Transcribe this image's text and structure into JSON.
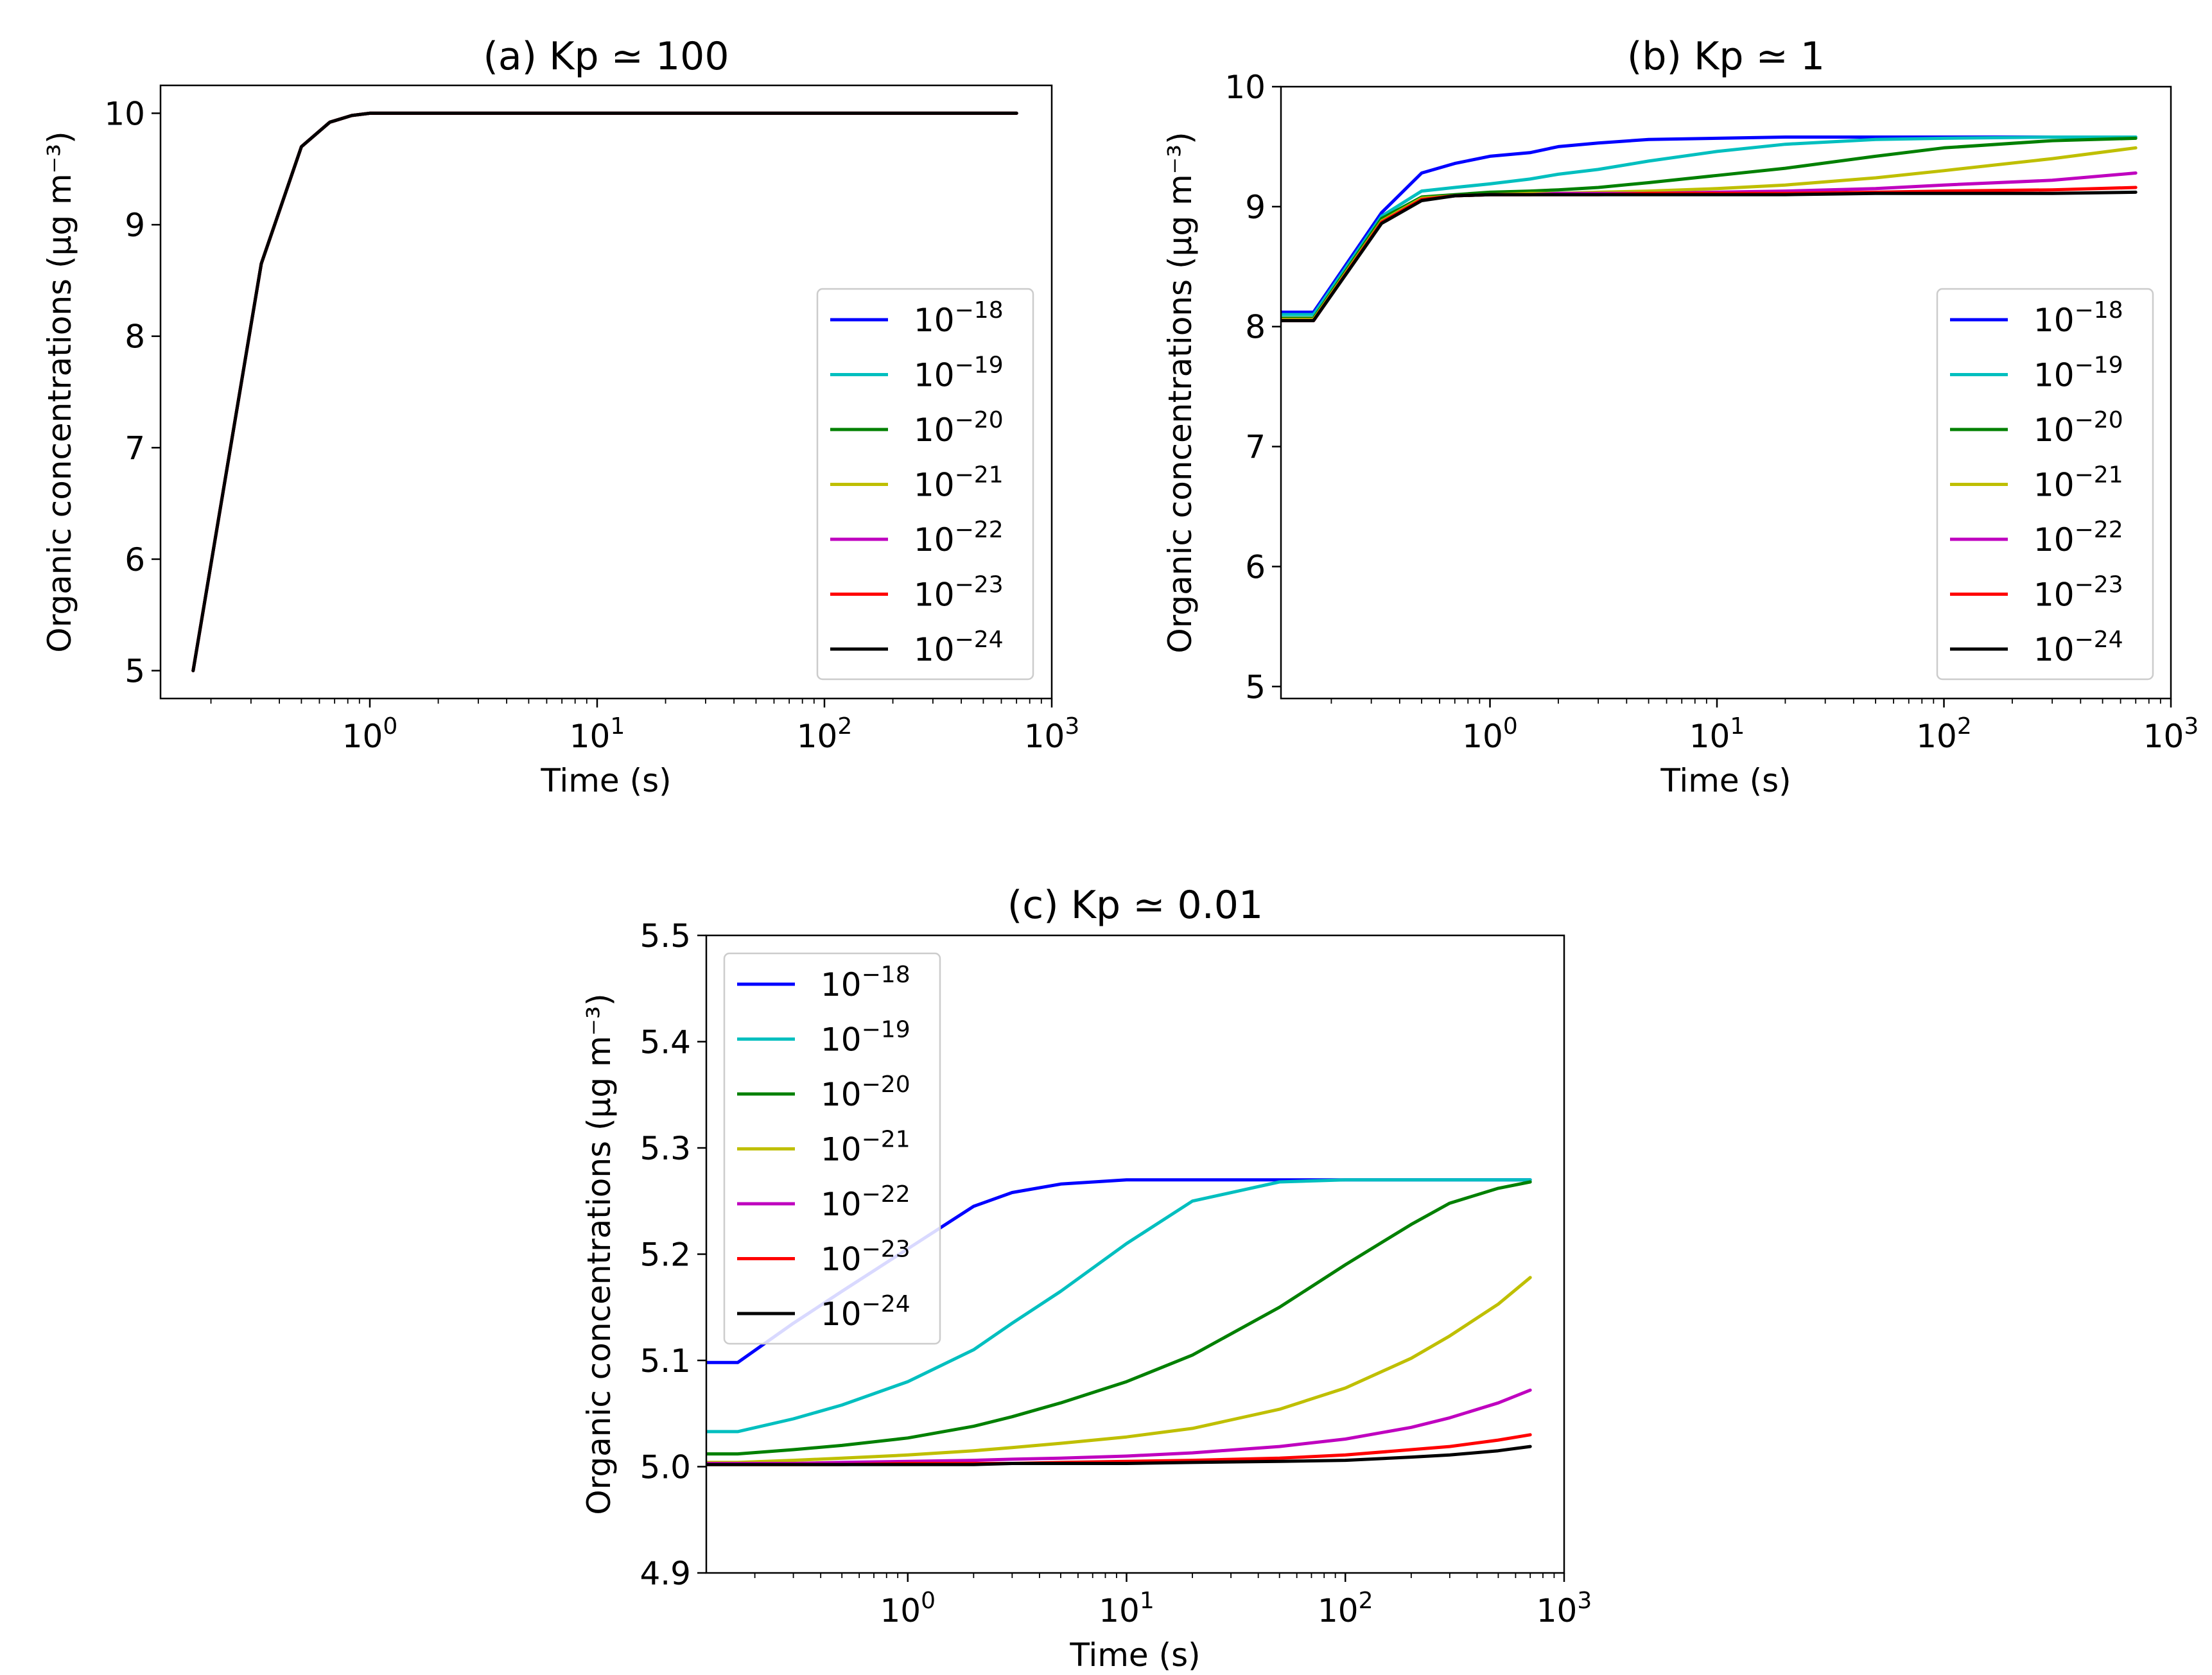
{
  "legend_labels": [
    "10^-18",
    "10^-19",
    "10^-20",
    "10^-21",
    "10^-22",
    "10^-23",
    "10^-24"
  ],
  "series_colors": [
    "#0000ff",
    "#00bfbf",
    "#008000",
    "#bfbf00",
    "#bf00bf",
    "#ff0000",
    "#000000"
  ],
  "chart_data": [
    {
      "type": "line",
      "title": "(a) Kp ≃ 100",
      "xlabel": "Time (s)",
      "ylabel": "Organic concentrations (μg m⁻³)",
      "xscale": "log",
      "xlim": [
        0.12,
        1000
      ],
      "ylim": [
        4.75,
        10.25
      ],
      "xticks": [
        "10^0",
        "10^1",
        "10^2",
        "10^3"
      ],
      "yticks": [
        "5",
        "6",
        "7",
        "8",
        "9",
        "10"
      ],
      "legend_loc": "lower right",
      "x": [
        0.167,
        0.333,
        0.5,
        0.667,
        0.833,
        1.0,
        1.5,
        3,
        10,
        100,
        700
      ],
      "series": [
        {
          "name": "10^-18",
          "values": [
            5.0,
            8.65,
            9.7,
            9.92,
            9.98,
            10.0,
            10.0,
            10.0,
            10.0,
            10.0,
            10.0
          ]
        },
        {
          "name": "10^-19",
          "values": [
            5.0,
            8.65,
            9.7,
            9.92,
            9.98,
            10.0,
            10.0,
            10.0,
            10.0,
            10.0,
            10.0
          ]
        },
        {
          "name": "10^-20",
          "values": [
            5.0,
            8.65,
            9.7,
            9.92,
            9.98,
            10.0,
            10.0,
            10.0,
            10.0,
            10.0,
            10.0
          ]
        },
        {
          "name": "10^-21",
          "values": [
            5.0,
            8.65,
            9.7,
            9.92,
            9.98,
            10.0,
            10.0,
            10.0,
            10.0,
            10.0,
            10.0
          ]
        },
        {
          "name": "10^-22",
          "values": [
            5.0,
            8.65,
            9.7,
            9.92,
            9.98,
            10.0,
            10.0,
            10.0,
            10.0,
            10.0,
            10.0
          ]
        },
        {
          "name": "10^-23",
          "values": [
            5.0,
            8.65,
            9.7,
            9.92,
            9.98,
            10.0,
            10.0,
            10.0,
            10.0,
            10.0,
            10.0
          ]
        },
        {
          "name": "10^-24",
          "values": [
            5.0,
            8.65,
            9.7,
            9.92,
            9.98,
            10.0,
            10.0,
            10.0,
            10.0,
            10.0,
            10.0
          ]
        }
      ]
    },
    {
      "type": "line",
      "title": "(b) Kp ≃ 1",
      "xlabel": "Time (s)",
      "ylabel": "Organic concentrations (μg m⁻³)",
      "xscale": "log",
      "xlim": [
        0.12,
        1000
      ],
      "ylim": [
        4.9,
        10.0
      ],
      "xticks": [
        "10^0",
        "10^1",
        "10^2",
        "10^3"
      ],
      "yticks": [
        "5",
        "6",
        "7",
        "8",
        "9",
        "10"
      ],
      "legend_loc": "lower right",
      "x": [
        0.12,
        0.167,
        0.333,
        0.5,
        0.7,
        1.0,
        1.5,
        2,
        3,
        5,
        10,
        20,
        50,
        100,
        300,
        700
      ],
      "series": [
        {
          "name": "10^-18",
          "values": [
            8.12,
            8.12,
            8.95,
            9.28,
            9.36,
            9.42,
            9.45,
            9.5,
            9.53,
            9.56,
            9.57,
            9.58,
            9.58,
            9.58,
            9.58,
            9.58
          ]
        },
        {
          "name": "10^-19",
          "values": [
            8.1,
            8.1,
            8.92,
            9.13,
            9.16,
            9.19,
            9.23,
            9.27,
            9.31,
            9.38,
            9.46,
            9.52,
            9.56,
            9.57,
            9.58,
            9.58
          ]
        },
        {
          "name": "10^-20",
          "values": [
            8.07,
            8.07,
            8.9,
            9.08,
            9.1,
            9.12,
            9.13,
            9.14,
            9.16,
            9.2,
            9.26,
            9.32,
            9.42,
            9.49,
            9.55,
            9.57
          ]
        },
        {
          "name": "10^-21",
          "values": [
            8.06,
            8.06,
            8.88,
            9.07,
            9.09,
            9.1,
            9.11,
            9.11,
            9.12,
            9.13,
            9.15,
            9.18,
            9.24,
            9.3,
            9.4,
            9.49
          ]
        },
        {
          "name": "10^-22",
          "values": [
            8.05,
            8.05,
            8.87,
            9.06,
            9.09,
            9.1,
            9.1,
            9.11,
            9.11,
            9.11,
            9.12,
            9.13,
            9.15,
            9.18,
            9.22,
            9.28
          ]
        },
        {
          "name": "10^-23",
          "values": [
            8.05,
            8.05,
            8.87,
            9.06,
            9.09,
            9.1,
            9.1,
            9.1,
            9.1,
            9.11,
            9.11,
            9.11,
            9.12,
            9.13,
            9.14,
            9.16
          ]
        },
        {
          "name": "10^-24",
          "values": [
            8.05,
            8.05,
            8.86,
            9.05,
            9.09,
            9.1,
            9.1,
            9.1,
            9.1,
            9.1,
            9.1,
            9.1,
            9.11,
            9.11,
            9.11,
            9.12
          ]
        }
      ]
    },
    {
      "type": "line",
      "title": "(c) Kp ≃ 0.01",
      "xlabel": "Time (s)",
      "ylabel": "Organic concentrations (μg m⁻³)",
      "xscale": "log",
      "xlim": [
        0.12,
        1000
      ],
      "ylim": [
        4.9,
        5.5
      ],
      "xticks": [
        "10^0",
        "10^1",
        "10^2",
        "10^3"
      ],
      "yticks": [
        "4.9",
        "5.0",
        "5.1",
        "5.2",
        "5.3",
        "5.4",
        "5.5"
      ],
      "legend_loc": "upper left",
      "x": [
        0.12,
        0.167,
        0.3,
        0.5,
        1,
        2,
        3,
        5,
        10,
        20,
        50,
        100,
        200,
        300,
        500,
        700
      ],
      "series": [
        {
          "name": "10^-18",
          "values": [
            5.098,
            5.098,
            5.135,
            5.165,
            5.205,
            5.245,
            5.258,
            5.266,
            5.27,
            5.27,
            5.27,
            5.27,
            5.27,
            5.27,
            5.27,
            5.27
          ]
        },
        {
          "name": "10^-19",
          "values": [
            5.033,
            5.033,
            5.045,
            5.058,
            5.08,
            5.11,
            5.135,
            5.165,
            5.21,
            5.25,
            5.268,
            5.27,
            5.27,
            5.27,
            5.27,
            5.27
          ]
        },
        {
          "name": "10^-20",
          "values": [
            5.012,
            5.012,
            5.016,
            5.02,
            5.027,
            5.038,
            5.047,
            5.06,
            5.08,
            5.105,
            5.15,
            5.19,
            5.228,
            5.248,
            5.262,
            5.268
          ]
        },
        {
          "name": "10^-21",
          "values": [
            5.004,
            5.004,
            5.006,
            5.008,
            5.011,
            5.015,
            5.018,
            5.022,
            5.028,
            5.036,
            5.054,
            5.074,
            5.102,
            5.123,
            5.153,
            5.178
          ]
        },
        {
          "name": "10^-22",
          "values": [
            5.003,
            5.003,
            5.003,
            5.004,
            5.005,
            5.006,
            5.007,
            5.008,
            5.01,
            5.013,
            5.019,
            5.026,
            5.037,
            5.046,
            5.06,
            5.072
          ]
        },
        {
          "name": "10^-23",
          "values": [
            5.002,
            5.002,
            5.002,
            5.002,
            5.003,
            5.003,
            5.003,
            5.004,
            5.005,
            5.006,
            5.008,
            5.011,
            5.016,
            5.019,
            5.025,
            5.03
          ]
        },
        {
          "name": "10^-24",
          "values": [
            5.002,
            5.002,
            5.002,
            5.002,
            5.002,
            5.002,
            5.003,
            5.003,
            5.003,
            5.004,
            5.005,
            5.006,
            5.009,
            5.011,
            5.015,
            5.019
          ]
        }
      ]
    }
  ]
}
